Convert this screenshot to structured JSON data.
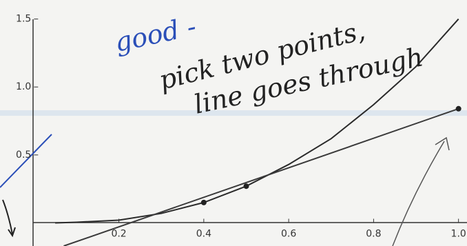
{
  "chart_data": {
    "type": "line",
    "xlim": [
      -0.08,
      1.02
    ],
    "ylim": [
      -0.17,
      1.64
    ],
    "xticks": [
      0.2,
      0.4,
      0.6,
      {
        "value": 0.8,
        "label": "0.8"
      },
      {
        "value": 1.0,
        "label": "1.0"
      }
    ],
    "yticks": [
      0.5,
      {
        "value": 1.0,
        "label": "1.0"
      },
      {
        "value": 1.5,
        "label": "1.5"
      }
    ],
    "series": [
      {
        "color": "#2a2a2a",
        "x": [
          0.05,
          0.1,
          0.2,
          0.3,
          0.4,
          0.5,
          0.6,
          0.7,
          0.8,
          0.9,
          1.0
        ],
        "values": [
          0.0,
          0.005,
          0.02,
          0.07,
          0.15,
          0.27,
          0.43,
          0.62,
          0.87,
          1.15,
          1.5
        ]
      },
      {
        "color": "#3a3a3a",
        "x": [
          0.07,
          1.0
        ],
        "values": [
          -0.17,
          0.84
        ]
      }
    ],
    "points": {
      "color": "#222",
      "x": [
        0.4,
        0.5,
        1.0
      ],
      "values": [
        0.15,
        0.27,
        0.84
      ]
    },
    "annotations": [
      {
        "text": "good -",
        "color": "#2b4fb8"
      },
      {
        "text": "pick two points,",
        "color": "#222"
      },
      {
        "text": "line goes through",
        "color": "#222"
      }
    ]
  }
}
